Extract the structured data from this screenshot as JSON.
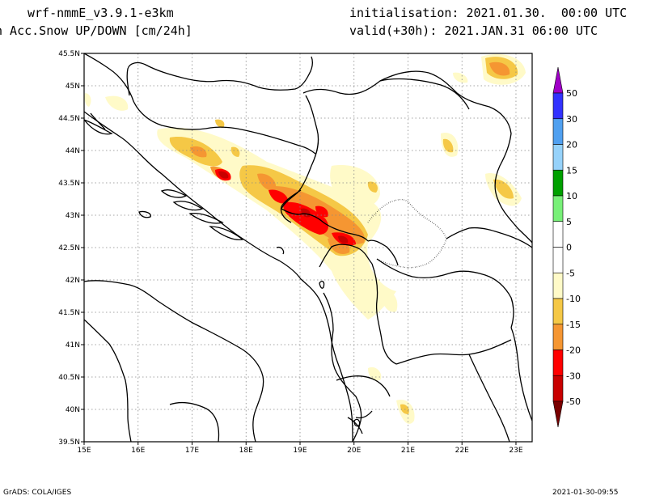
{
  "header": {
    "model": "wrf-nmmE_v3.9.1-e3km",
    "field": "n Acc.Snow UP/DOWN [cm/24h]",
    "init": "initialisation: 2021.01.30.  00:00 UTC",
    "valid": "valid(+30h): 2021.JAN.31 06:00 UTC"
  },
  "footer": {
    "left": "GrADS: COLA/IGES",
    "right": "2021-01-30-09:55"
  },
  "map": {
    "lon_labels": [
      "15E",
      "16E",
      "17E",
      "18E",
      "19E",
      "20E",
      "21E",
      "22E",
      "23E"
    ],
    "lat_labels": [
      "45.5N",
      "45N",
      "44.5N",
      "44N",
      "43.5N",
      "43N",
      "42.5N",
      "42N",
      "41.5N",
      "41N",
      "40.5N",
      "40N",
      "39.5N"
    ]
  },
  "colorbar": {
    "levels": [
      "50",
      "30",
      "20",
      "15",
      "10",
      "5",
      "0",
      "-5",
      "-10",
      "-15",
      "-20",
      "-30",
      "-50"
    ],
    "colors": [
      "#a000c8",
      "#3232ff",
      "#50a0f0",
      "#96d2fa",
      "#00a000",
      "#78f078",
      "#ffffff",
      "#ffffff",
      "#fffac8",
      "#f5c846",
      "#f59632",
      "#ff0000",
      "#c80000",
      "#a00000"
    ],
    "top_color": "#a000c8",
    "bottom_color": "#7a0000"
  }
}
